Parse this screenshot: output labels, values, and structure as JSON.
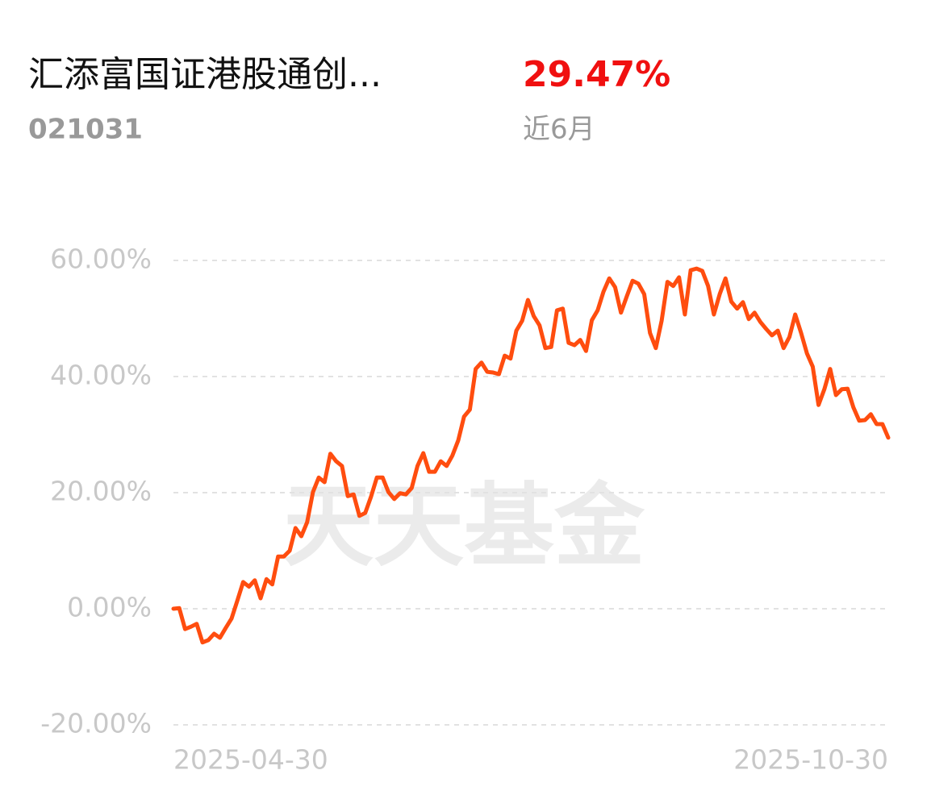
{
  "header": {
    "title": "汇添富国证港股通创...",
    "code": "021031",
    "return": "29.47%",
    "period": "近6月"
  },
  "watermark": "天天基金",
  "chart_data": {
    "type": "line",
    "color": "#ff4d0f",
    "grid": true,
    "ylim": [
      -20,
      60
    ],
    "yticks": [
      {
        "value": 60,
        "label": "60.00%"
      },
      {
        "value": 40,
        "label": "40.00%"
      },
      {
        "value": 20,
        "label": "20.00%"
      },
      {
        "value": 0,
        "label": "0.00%"
      },
      {
        "value": -20,
        "label": "-20.00%"
      }
    ],
    "categories": [
      "2025-04-30",
      null,
      null,
      null,
      null,
      null,
      null,
      null,
      null,
      null,
      null,
      null,
      null,
      null,
      null,
      null,
      null,
      null,
      null,
      null,
      null,
      null,
      null,
      null,
      null,
      null,
      null,
      null,
      null,
      null,
      null,
      null,
      null,
      null,
      null,
      null,
      null,
      null,
      null,
      null,
      null,
      null,
      null,
      null,
      null,
      null,
      null,
      null,
      null,
      null,
      null,
      null,
      null,
      null,
      null,
      null,
      null,
      null,
      null,
      null,
      null,
      null,
      null,
      null,
      null,
      null,
      null,
      null,
      null,
      null,
      null,
      null,
      null,
      null,
      null,
      null,
      null,
      null,
      null,
      null,
      null,
      null,
      null,
      null,
      null,
      null,
      null,
      null,
      null,
      null,
      null,
      null,
      null,
      null,
      null,
      null,
      null,
      null,
      null,
      null,
      null,
      null,
      null,
      null,
      null,
      null,
      null,
      null,
      null,
      null,
      null,
      null,
      null,
      null,
      null,
      null,
      null,
      null,
      null,
      null,
      null,
      null,
      null,
      "2025-10-30"
    ],
    "values": [
      0,
      0.1,
      -3.5,
      -3.1,
      -2.6,
      -5.8,
      -5.4,
      -4.3,
      -5.0,
      -3.3,
      -1.7,
      1.4,
      4.6,
      3.8,
      4.9,
      1.8,
      5.1,
      4.2,
      9.0,
      9.0,
      10.0,
      13.9,
      12.5,
      14.9,
      20.1,
      22.6,
      21.8,
      26.7,
      25.4,
      24.6,
      19.4,
      19.7,
      16.0,
      16.5,
      19.3,
      22.6,
      22.6,
      20.1,
      18.9,
      19.9,
      19.7,
      20.8,
      24.6,
      26.8,
      23.6,
      23.6,
      25.4,
      24.6,
      26.4,
      29.0,
      33.1,
      34.3,
      41.3,
      42.4,
      40.8,
      40.7,
      40.4,
      43.6,
      43.1,
      47.9,
      49.6,
      53.2,
      50.4,
      48.8,
      44.9,
      45.1,
      51.4,
      51.7,
      45.8,
      45.4,
      46.3,
      44.4,
      49.7,
      51.4,
      54.6,
      56.9,
      55.4,
      51.0,
      53.8,
      56.5,
      56.0,
      54.2,
      47.5,
      44.9,
      49.6,
      56.3,
      55.6,
      57.1,
      50.7,
      58.3,
      58.6,
      58.2,
      55.6,
      50.7,
      54.2,
      56.9,
      52.9,
      51.7,
      52.8,
      49.9,
      51.0,
      49.4,
      48.2,
      47.1,
      47.9,
      44.9,
      46.8,
      50.7,
      47.5,
      44.0,
      41.7,
      35.1,
      37.8,
      41.3,
      36.8,
      37.8,
      37.9,
      34.7,
      32.4,
      32.5,
      33.5,
      31.8,
      31.8,
      29.47
    ]
  }
}
